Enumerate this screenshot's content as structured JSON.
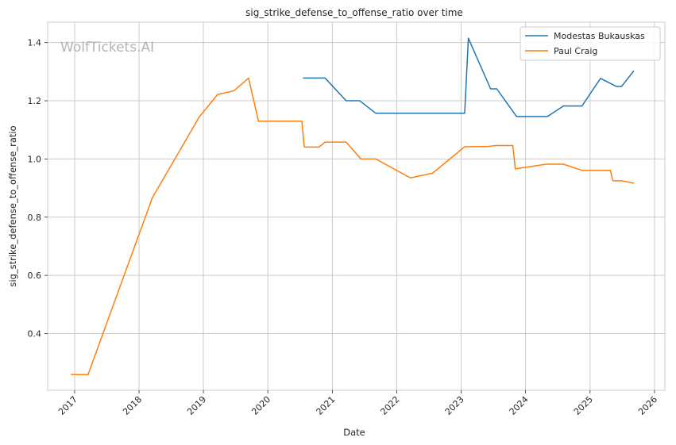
{
  "watermark": "WolfTickets.AI",
  "chart_data": {
    "type": "line",
    "title": "sig_strike_defense_to_offense_ratio over time",
    "xlabel": "Date",
    "ylabel": "sig_strike_defense_to_offense_ratio",
    "x_axis_type": "date",
    "xlim": [
      "2016-08-01",
      "2026-03-01"
    ],
    "ylim": [
      0.205,
      1.47
    ],
    "x_ticks": [
      "2017-01-01",
      "2018-01-01",
      "2019-01-01",
      "2020-01-01",
      "2021-01-01",
      "2022-01-01",
      "2023-01-01",
      "2024-01-01",
      "2025-01-01",
      "2026-01-01"
    ],
    "x_tick_labels": [
      "2017",
      "2018",
      "2019",
      "2020",
      "2021",
      "2022",
      "2023",
      "2024",
      "2025",
      "2026"
    ],
    "y_ticks": [
      0.4,
      0.6,
      0.8,
      1.0,
      1.2,
      1.4
    ],
    "y_tick_labels": [
      "0.4",
      "0.6",
      "0.8",
      "1.0",
      "1.2",
      "1.4"
    ],
    "grid": true,
    "legend_position": "top-right",
    "series": [
      {
        "name": "Modestas Bukauskas",
        "color": "#1f77b4",
        "points": [
          [
            "2020-07-18",
            1.278
          ],
          [
            "2020-11-21",
            1.278
          ],
          [
            "2021-03-20",
            1.2
          ],
          [
            "2021-06-05",
            1.2
          ],
          [
            "2021-09-04",
            1.157
          ],
          [
            "2023-01-21",
            1.157
          ],
          [
            "2023-02-11",
            1.415
          ],
          [
            "2023-06-17",
            1.241
          ],
          [
            "2023-07-22",
            1.241
          ],
          [
            "2023-11-11",
            1.146
          ],
          [
            "2024-05-04",
            1.146
          ],
          [
            "2024-08-03",
            1.182
          ],
          [
            "2024-11-16",
            1.182
          ],
          [
            "2025-03-01",
            1.277
          ],
          [
            "2025-05-31",
            1.249
          ],
          [
            "2025-06-28",
            1.249
          ],
          [
            "2025-09-06",
            1.303
          ]
        ]
      },
      {
        "name": "Paul Craig",
        "color": "#ff7f0e",
        "points": [
          [
            "2016-12-10",
            0.259
          ],
          [
            "2017-03-18",
            0.259
          ],
          [
            "2018-03-17",
            0.866
          ],
          [
            "2018-12-08",
            1.144
          ],
          [
            "2019-03-23",
            1.222
          ],
          [
            "2019-06-22",
            1.234
          ],
          [
            "2019-09-14",
            1.278
          ],
          [
            "2019-11-09",
            1.13
          ],
          [
            "2020-07-12",
            1.13
          ],
          [
            "2020-07-26",
            1.041
          ],
          [
            "2020-10-17",
            1.041
          ],
          [
            "2020-11-21",
            1.058
          ],
          [
            "2021-03-20",
            1.058
          ],
          [
            "2021-06-12",
            1.0
          ],
          [
            "2021-09-04",
            1.0
          ],
          [
            "2022-03-19",
            0.935
          ],
          [
            "2022-07-23",
            0.951
          ],
          [
            "2023-01-21",
            1.042
          ],
          [
            "2023-06-03",
            1.043
          ],
          [
            "2023-07-15",
            1.046
          ],
          [
            "2023-10-21",
            1.046
          ],
          [
            "2023-11-04",
            0.966
          ],
          [
            "2024-04-27",
            0.982
          ],
          [
            "2024-08-03",
            0.982
          ],
          [
            "2024-11-16",
            0.961
          ],
          [
            "2025-04-26",
            0.961
          ],
          [
            "2025-05-10",
            0.925
          ],
          [
            "2025-06-28",
            0.925
          ],
          [
            "2025-09-06",
            0.917
          ]
        ]
      }
    ]
  }
}
